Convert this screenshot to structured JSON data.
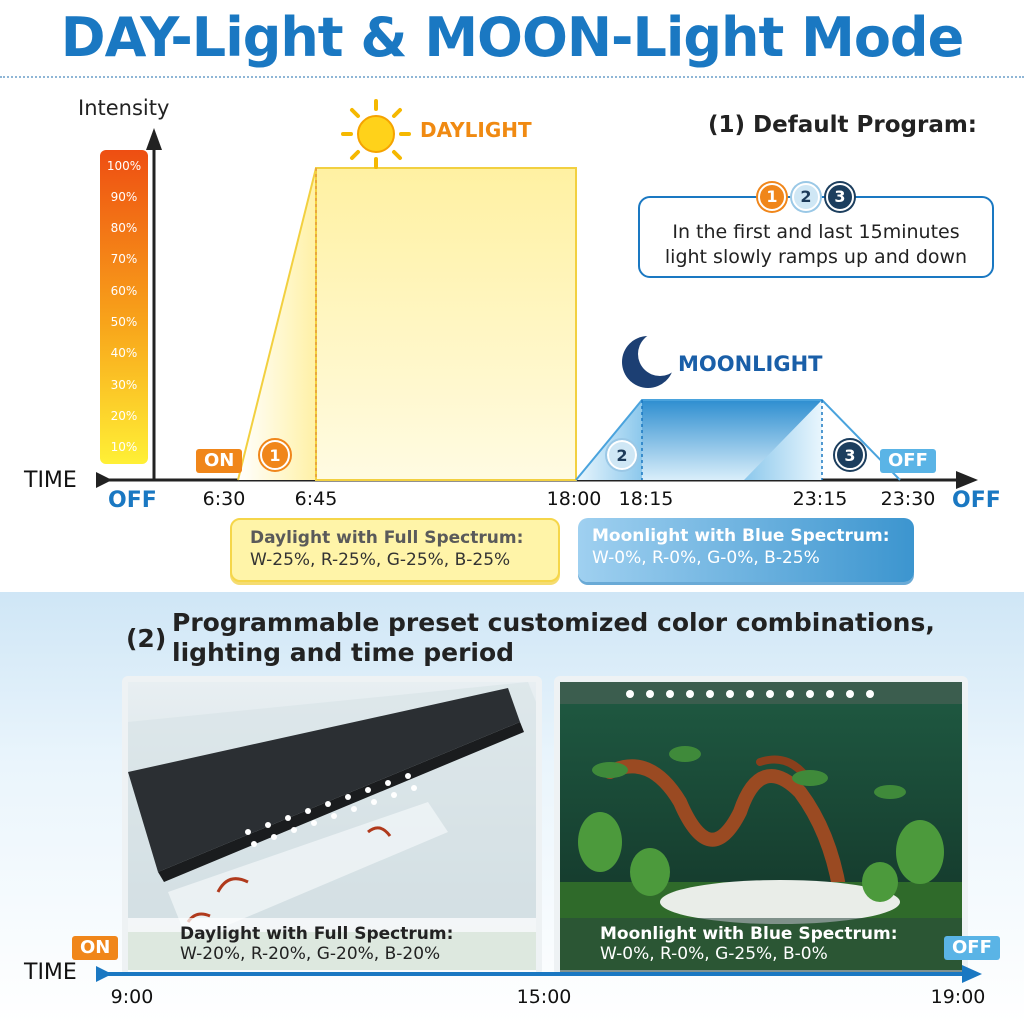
{
  "title": "DAY-Light & MOON-Light Mode",
  "chart": {
    "y_axis_label": "Intensity",
    "x_axis_label": "TIME",
    "y_ticks": [
      "100%",
      "90%",
      "80%",
      "70%",
      "60%",
      "50%",
      "40%",
      "30%",
      "20%",
      "10%"
    ],
    "off_left": "OFF",
    "off_right": "OFF",
    "time_ticks": [
      "6:30",
      "6:45",
      "18:00",
      "18:15",
      "23:15",
      "23:30"
    ],
    "daylight_label": "DAYLIGHT",
    "moonlight_label": "MOONLIGHT",
    "on_tag": "ON",
    "off_tag": "OFF",
    "step_1": "1",
    "step_2": "2",
    "step_3": "3"
  },
  "chart_data": {
    "type": "area",
    "title": "",
    "xlabel": "TIME",
    "ylabel": "Intensity",
    "x": [
      "6:30",
      "6:45",
      "18:00",
      "18:15",
      "23:15",
      "23:30"
    ],
    "series": [
      {
        "name": "DAYLIGHT",
        "values": [
          0,
          100,
          100,
          0,
          null,
          null
        ]
      },
      {
        "name": "MOONLIGHT",
        "values": [
          null,
          null,
          0,
          25,
          25,
          0
        ]
      }
    ],
    "ylim": [
      0,
      100
    ],
    "colors": {
      "daylight": "#fff2a0",
      "moonlight": "#3c9ad6"
    }
  },
  "default_program": {
    "heading": "(1) Default Program:",
    "circles": [
      "1",
      "2",
      "3"
    ],
    "line1": "In the first and last 15minutes",
    "line2": "light slowly ramps up and down"
  },
  "cards": {
    "day_title": "Daylight with Full Spectrum:",
    "day_values": "W-25%, R-25%, G-25%, B-25%",
    "moon_title": "Moonlight with Blue Spectrum:",
    "moon_values": "W-0%, R-0%, G-0%, B-25%"
  },
  "section2": {
    "number": "(2)",
    "line1": "Programmable preset customized color combinations,",
    "line2": "lighting and time period",
    "left_caption_title": "Daylight with Full Spectrum:",
    "left_caption_values": "W-20%, R-20%, G-20%, B-20%",
    "right_caption_title": "Moonlight with Blue Spectrum:",
    "right_caption_values": "W-0%, R-0%, G-25%, B-0%",
    "on_tag": "ON",
    "off_tag": "OFF",
    "time_label": "TIME",
    "time_ticks": [
      "9:00",
      "15:00",
      "19:00"
    ]
  }
}
